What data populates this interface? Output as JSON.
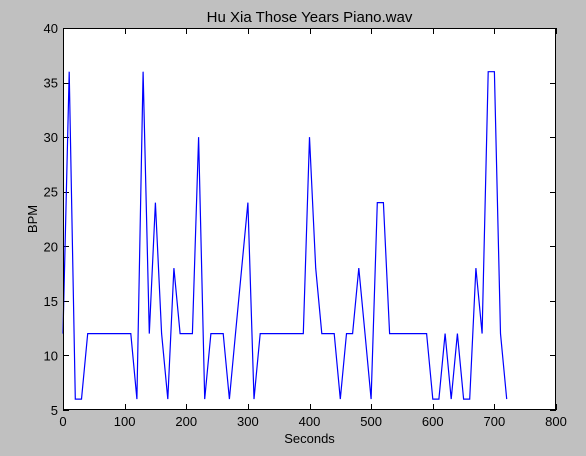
{
  "chart_data": {
    "type": "line",
    "title": "Hu Xia Those Years Piano.wav",
    "xlabel": "Seconds",
    "ylabel": "BPM",
    "xlim": [
      0,
      800
    ],
    "ylim": [
      5,
      40
    ],
    "xticks": [
      0,
      100,
      200,
      300,
      400,
      500,
      600,
      700,
      800
    ],
    "yticks": [
      5,
      10,
      15,
      20,
      25,
      30,
      35,
      40
    ],
    "grid": false,
    "series": [
      {
        "color": "#0000ff",
        "x": [
          0,
          10,
          20,
          30,
          40,
          50,
          60,
          70,
          80,
          90,
          100,
          110,
          120,
          130,
          140,
          150,
          160,
          170,
          180,
          190,
          200,
          210,
          220,
          230,
          240,
          250,
          260,
          270,
          280,
          290,
          300,
          310,
          320,
          330,
          340,
          350,
          360,
          370,
          380,
          390,
          400,
          410,
          420,
          430,
          440,
          450,
          460,
          470,
          480,
          490,
          500,
          510,
          520,
          530,
          540,
          550,
          560,
          570,
          580,
          590,
          600,
          610,
          620,
          630,
          640,
          650,
          660,
          670,
          680,
          690,
          700,
          710,
          720
        ],
        "y": [
          12,
          36,
          6,
          6,
          12,
          12,
          12,
          12,
          12,
          12,
          12,
          12,
          6,
          36,
          12,
          24,
          12,
          6,
          18,
          12,
          12,
          12,
          30,
          6,
          12,
          12,
          12,
          6,
          12,
          18,
          24,
          6,
          12,
          12,
          12,
          12,
          12,
          12,
          12,
          12,
          30,
          18,
          12,
          12,
          12,
          6,
          12,
          12,
          18,
          12,
          6,
          24,
          24,
          12,
          12,
          12,
          12,
          12,
          12,
          12,
          6,
          6,
          12,
          6,
          12,
          6,
          6,
          18,
          12,
          36,
          36,
          12,
          6
        ]
      }
    ]
  }
}
